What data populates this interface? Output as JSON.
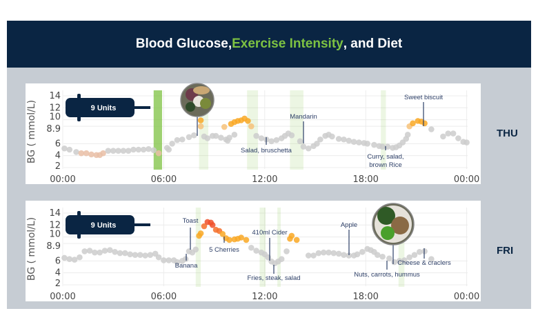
{
  "header": {
    "title_part1": "Blood Glucose, ",
    "title_part2": "Exercise Intensity",
    "title_part3": ", and Diet"
  },
  "colors": {
    "header_bg": "#0a2543",
    "exercise_green": "#7dc242",
    "low": "#e9bea6",
    "normal": "#cccccc",
    "elevated": "#f7c27a",
    "high": "#f9a825",
    "very_high": "#f4702a",
    "extreme": "#f0502a",
    "annotation": "#2c3e66"
  },
  "chart_data": [
    {
      "type": "scatter",
      "day": "THU",
      "ylabel": "BG ( mmol/L)",
      "yticks": [
        2,
        4,
        6,
        8.9,
        10,
        12,
        14
      ],
      "ylim": [
        2,
        14.5
      ],
      "xlim": [
        0,
        24
      ],
      "xticks": [
        "00:00",
        "06:00",
        "12:00",
        "18:00",
        "00:00"
      ],
      "xtick_hours": [
        0,
        6,
        12,
        18,
        24
      ],
      "grid": true,
      "insulin": {
        "label": "9 Units"
      },
      "exercise": [
        {
          "start": 5.4,
          "end": 5.9,
          "intensity": "high"
        },
        {
          "start": 8.1,
          "end": 8.65,
          "intensity": "low"
        },
        {
          "start": 10.95,
          "end": 11.6,
          "intensity": "low"
        },
        {
          "start": 13.5,
          "end": 14.3,
          "intensity": "low"
        },
        {
          "start": 18.9,
          "end": 19.2,
          "intensity": "low"
        }
      ],
      "meals": [
        {
          "label": "",
          "photo": "salad"
        },
        {
          "label": "Salad, bruschetta"
        },
        {
          "label": "Mandarin"
        },
        {
          "label": "Curry, salad,",
          "label2": "brown Rice"
        },
        {
          "label": "Sweet biscuit"
        }
      ],
      "points": [
        [
          0.1,
          5.2
        ],
        [
          0.4,
          5
        ],
        [
          0.8,
          4.6
        ],
        [
          1.1,
          4.4
        ],
        [
          1.4,
          4.4
        ],
        [
          1.7,
          4.2
        ],
        [
          2,
          4.1
        ],
        [
          2.2,
          4.1
        ],
        [
          2.4,
          4.4
        ],
        [
          2.7,
          4.8
        ],
        [
          3,
          4.8
        ],
        [
          3.3,
          4.8
        ],
        [
          3.6,
          4.8
        ],
        [
          3.9,
          4.8
        ],
        [
          4.2,
          5
        ],
        [
          4.5,
          5
        ],
        [
          4.8,
          5
        ],
        [
          5.1,
          5.1
        ],
        [
          5.4,
          4.9
        ],
        [
          5.7,
          4.4
        ],
        [
          6.2,
          5.3
        ],
        [
          6.3,
          5
        ],
        [
          6.5,
          6
        ],
        [
          6.8,
          6.6
        ],
        [
          7.1,
          6.7
        ],
        [
          7.5,
          7.1
        ],
        [
          7.8,
          7.4
        ],
        [
          8.2,
          9.9
        ],
        [
          8.2,
          8.9
        ],
        [
          8.4,
          7.2
        ],
        [
          8.6,
          6.9
        ],
        [
          8.9,
          7.3
        ],
        [
          9.1,
          7.3
        ],
        [
          9.4,
          7
        ],
        [
          9.7,
          6.7
        ],
        [
          9.8,
          6.5
        ],
        [
          9.9,
          7
        ],
        [
          10.2,
          7.5
        ],
        [
          9.6,
          8.8
        ],
        [
          10.0,
          9.3
        ],
        [
          10.2,
          9.6
        ],
        [
          10.4,
          9.8
        ],
        [
          10.6,
          9.9
        ],
        [
          10.8,
          10.2
        ],
        [
          11.0,
          9.8
        ],
        [
          11.2,
          8.9
        ],
        [
          11.5,
          7.3
        ],
        [
          11.8,
          6.9
        ],
        [
          12.1,
          6.7
        ],
        [
          12.4,
          6.4
        ],
        [
          12.7,
          6.6
        ],
        [
          13,
          6.9
        ],
        [
          13.2,
          7.3
        ],
        [
          13.4,
          7.7
        ],
        [
          13.6,
          7.4
        ],
        [
          14.1,
          6.4
        ],
        [
          14.3,
          5.5
        ],
        [
          14.6,
          5.2
        ],
        [
          14.9,
          5.6
        ],
        [
          15.1,
          6
        ],
        [
          15.3,
          6.7
        ],
        [
          15.6,
          7.3
        ],
        [
          15.8,
          7.5
        ],
        [
          16,
          7.2
        ],
        [
          16.4,
          6.8
        ],
        [
          16.7,
          6.7
        ],
        [
          17,
          6.5
        ],
        [
          17.3,
          6.3
        ],
        [
          17.6,
          6.2
        ],
        [
          17.9,
          6.1
        ],
        [
          18.1,
          6
        ],
        [
          18.5,
          5.8
        ],
        [
          18.8,
          5.6
        ],
        [
          19,
          5.5
        ],
        [
          19.3,
          5.5
        ],
        [
          19.6,
          5.3
        ],
        [
          19.8,
          5.4
        ],
        [
          20,
          5.7
        ],
        [
          20.2,
          6.2
        ],
        [
          20.4,
          6.8
        ],
        [
          20.5,
          7.5
        ],
        [
          20.6,
          8.9
        ],
        [
          20.8,
          9.4
        ],
        [
          21.1,
          9.8
        ],
        [
          21.3,
          9.7
        ],
        [
          21.5,
          9.4
        ],
        [
          21.9,
          8.4
        ],
        [
          22.6,
          7.2
        ],
        [
          22.9,
          7.7
        ],
        [
          23.2,
          7.7
        ],
        [
          23.5,
          6.9
        ],
        [
          23.8,
          6.3
        ],
        [
          24,
          6.2
        ]
      ]
    },
    {
      "type": "scatter",
      "day": "FRI",
      "ylabel": "BG ( mmol/L)",
      "yticks": [
        2,
        4,
        6,
        8.9,
        10,
        12,
        14
      ],
      "ylim": [
        2,
        14.5
      ],
      "xlim": [
        0,
        24
      ],
      "xticks": [
        "00:00",
        "06:00",
        "12:00",
        "18:00",
        "00:00"
      ],
      "xtick_hours": [
        0,
        6,
        12,
        18,
        24
      ],
      "grid": true,
      "insulin": {
        "label": "9 Units"
      },
      "exercise": [
        {
          "start": 7.9,
          "end": 8.2,
          "intensity": "low"
        },
        {
          "start": 11.7,
          "end": 12.05,
          "intensity": "low"
        },
        {
          "start": 12.75,
          "end": 12.95,
          "intensity": "low"
        },
        {
          "start": 19.95,
          "end": 20.3,
          "intensity": "low"
        }
      ],
      "meals": [
        {
          "label": "Banana"
        },
        {
          "label": "Toast"
        },
        {
          "label": "5 Cherries"
        },
        {
          "label": "410ml Cider"
        },
        {
          "label": "Fries, steak, salad"
        },
        {
          "label": "Apple"
        },
        {
          "label": "Nuts, carrots, hummus"
        },
        {
          "label": "",
          "photo": "broccoli-peas-meat"
        },
        {
          "label": "Cheese & craclers"
        }
      ],
      "points": [
        [
          0.1,
          6.5
        ],
        [
          0.4,
          6.3
        ],
        [
          0.7,
          6.2
        ],
        [
          1,
          6.6
        ],
        [
          1.3,
          7.6
        ],
        [
          1.6,
          7.7
        ],
        [
          1.9,
          7.4
        ],
        [
          2.2,
          7.4
        ],
        [
          2.5,
          7.7
        ],
        [
          2.8,
          7.8
        ],
        [
          3.1,
          7.5
        ],
        [
          3.4,
          7.3
        ],
        [
          3.7,
          7.3
        ],
        [
          4,
          7.1
        ],
        [
          4.3,
          7
        ],
        [
          4.6,
          7
        ],
        [
          4.9,
          6.9
        ],
        [
          5.2,
          7
        ],
        [
          5.5,
          7.2
        ],
        [
          5.7,
          6.6
        ],
        [
          6,
          6.1
        ],
        [
          6.3,
          6.1
        ],
        [
          6.6,
          6.1
        ],
        [
          6.8,
          5.8
        ],
        [
          7.1,
          6
        ],
        [
          7.3,
          6.3
        ],
        [
          7.5,
          7.6
        ],
        [
          7.7,
          7.4
        ],
        [
          7.9,
          7.9
        ],
        [
          8.1,
          10.2
        ],
        [
          8.2,
          10.6
        ],
        [
          8.4,
          11.8
        ],
        [
          8.6,
          12.5
        ],
        [
          8.8,
          12.4
        ],
        [
          8.9,
          12.0
        ],
        [
          9.1,
          11.2
        ],
        [
          9.3,
          11.0
        ],
        [
          9.5,
          10.5
        ],
        [
          9.7,
          9.8
        ],
        [
          9.9,
          9.5
        ],
        [
          10.2,
          9.6
        ],
        [
          10.4,
          9.7
        ],
        [
          10.6,
          9.9
        ],
        [
          10.9,
          9.5
        ],
        [
          11.2,
          8.2
        ],
        [
          11.5,
          7.7
        ],
        [
          11.8,
          7.4
        ],
        [
          12,
          7.1
        ],
        [
          12.2,
          6.6
        ],
        [
          12.4,
          5.9
        ],
        [
          12.6,
          5.6
        ],
        [
          12.8,
          5.9
        ],
        [
          13,
          6.3
        ],
        [
          13.3,
          7.6
        ],
        [
          13.5,
          9.7
        ],
        [
          13.6,
          10.2
        ],
        [
          13.9,
          9.5
        ],
        [
          14.6,
          6.9
        ],
        [
          14.9,
          6.9
        ],
        [
          15.2,
          7.3
        ],
        [
          15.5,
          7.4
        ],
        [
          15.8,
          7.4
        ],
        [
          16.1,
          7.3
        ],
        [
          16.4,
          7.2
        ],
        [
          16.7,
          7
        ],
        [
          17,
          6.9
        ],
        [
          17.3,
          6.9
        ],
        [
          17.5,
          7.1
        ],
        [
          17.8,
          7.5
        ],
        [
          18.1,
          8
        ],
        [
          18.3,
          7.8
        ],
        [
          18.5,
          7.5
        ],
        [
          18.7,
          7
        ],
        [
          19,
          6.7
        ],
        [
          19.4,
          6.4
        ],
        [
          19.7,
          5.8
        ],
        [
          20,
          6
        ],
        [
          20.3,
          6.1
        ],
        [
          20.6,
          6.6
        ],
        [
          20.9,
          7
        ],
        [
          21.2,
          7.5
        ],
        [
          21.5,
          7.6
        ],
        [
          21.9,
          6.3
        ]
      ]
    }
  ]
}
